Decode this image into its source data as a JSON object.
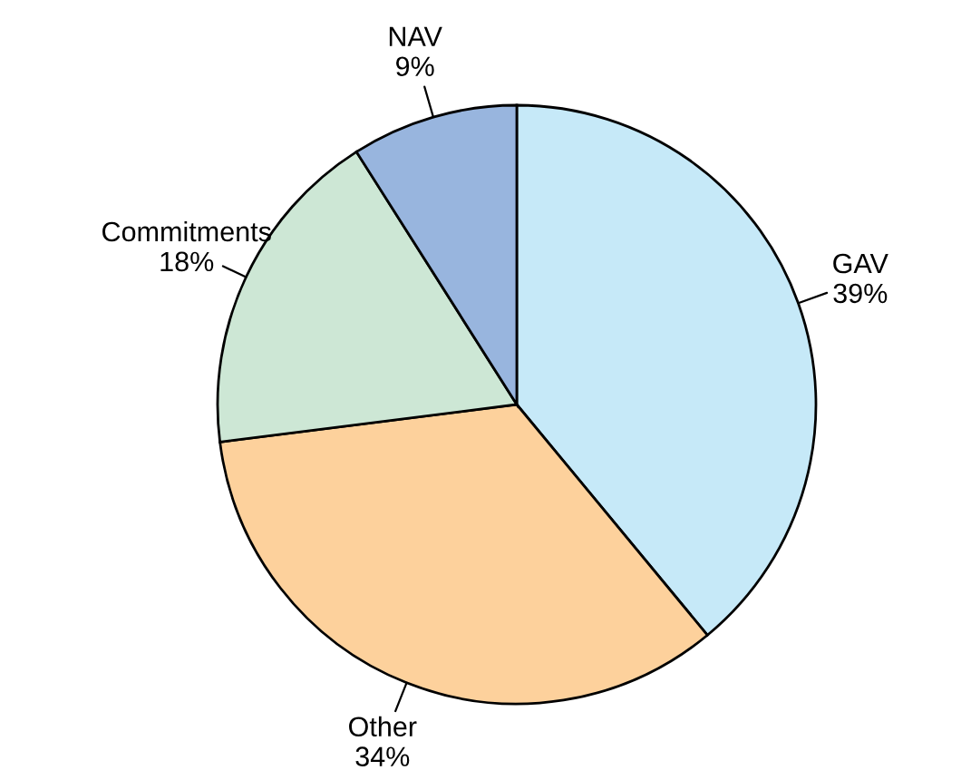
{
  "chart_data": {
    "type": "pie",
    "categories": [
      "GAV",
      "Other",
      "Commitments",
      "NAV"
    ],
    "values": [
      39,
      34,
      18,
      9
    ],
    "colors": [
      "#c6e9f8",
      "#fdd19c",
      "#cde7d5",
      "#98b5de"
    ],
    "value_labels": [
      "39%",
      "34%",
      "18%",
      "9%"
    ],
    "legend": false
  }
}
